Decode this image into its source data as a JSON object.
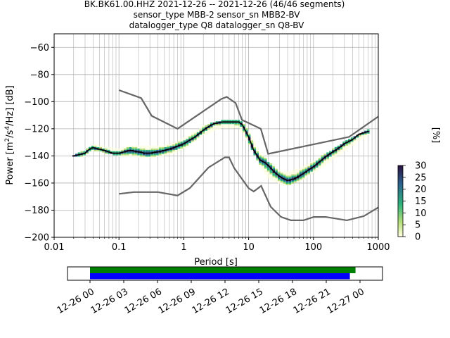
{
  "title": {
    "line1": "BK.BK61.00.HHZ   2021-12-26 -- 2021-12-26  (46/46 segments)",
    "line2": "sensor_type MBB-2 sensor_sn MBB2-BV",
    "line3": "datalogger_type Q8 datalogger_sn Q8-BV"
  },
  "chart_data": [
    {
      "type": "heatmap",
      "xlabel": "Period [s]",
      "ylabel_parts": [
        "Power [m",
        "2",
        "/s",
        "4",
        "/Hz] [dB]"
      ],
      "xscale": "log",
      "xlim": [
        0.01,
        1000
      ],
      "ylim": [
        -200,
        -50
      ],
      "x_ticks": [
        0.01,
        0.1,
        1,
        10,
        100,
        1000
      ],
      "x_tick_labels": [
        "0.01",
        "0.1",
        "1",
        "10",
        "100",
        "1000"
      ],
      "y_ticks": [
        -200,
        -180,
        -160,
        -140,
        -120,
        -100,
        -80,
        -60
      ],
      "y_tick_labels": [
        "−200",
        "−180",
        "−160",
        "−140",
        "−120",
        "−100",
        "−80",
        "−60"
      ],
      "grid": true,
      "colormap": {
        "low": "#ffffe0",
        "mid_low": "#b8e07a",
        "mid": "#2fb47c",
        "mid_high": "#2b5f8c",
        "high": "#2a1140"
      },
      "colorbar": {
        "label": "[%]",
        "min": 0,
        "max": 30,
        "ticks": [
          0,
          5,
          10,
          15,
          20,
          25,
          30
        ]
      },
      "mean_curve": {
        "period": [
          0.02,
          0.025,
          0.03,
          0.035,
          0.04,
          0.05,
          0.06,
          0.08,
          0.1,
          0.12,
          0.15,
          0.2,
          0.25,
          0.3,
          0.4,
          0.5,
          0.7,
          1,
          1.5,
          2,
          2.5,
          3,
          4,
          5,
          6,
          7,
          8,
          10,
          12,
          15,
          18,
          20,
          25,
          30,
          35,
          40,
          50,
          60,
          70,
          80,
          100,
          120,
          150,
          200,
          250,
          300,
          400,
          500,
          600,
          700
        ],
        "power_db": [
          -140,
          -139,
          -138,
          -135,
          -134,
          -135,
          -136,
          -138,
          -138,
          -137,
          -136,
          -137,
          -138,
          -138,
          -137,
          -136,
          -134,
          -131,
          -126,
          -121,
          -118,
          -116,
          -115,
          -115,
          -115,
          -115,
          -117,
          -126,
          -136,
          -143,
          -145,
          -147,
          -152,
          -155,
          -157,
          -158,
          -157,
          -155,
          -153,
          -151,
          -148,
          -145,
          -141,
          -137,
          -134,
          -131,
          -128,
          -124,
          -123,
          -122
        ]
      },
      "percentile_low": {
        "period": [
          0.02,
          0.03,
          0.04,
          0.06,
          0.1,
          0.15,
          0.2,
          0.3,
          0.5,
          0.7,
          1,
          2,
          3,
          5,
          7,
          10,
          15,
          20,
          30,
          40,
          60,
          100,
          200,
          400,
          700
        ],
        "power_db": [
          -140,
          -139,
          -135,
          -137,
          -139,
          -140,
          -140,
          -141,
          -139,
          -137,
          -134,
          -124,
          -120,
          -118,
          -119,
          -130,
          -146,
          -155,
          -160,
          -161,
          -158,
          -152,
          -142,
          -131,
          -124
        ]
      },
      "percentile_high": {
        "period": [
          0.02,
          0.03,
          0.04,
          0.06,
          0.1,
          0.15,
          0.2,
          0.3,
          0.5,
          0.7,
          1,
          2,
          3,
          5,
          7,
          10,
          15,
          20,
          30,
          40,
          60,
          100,
          200,
          400,
          700
        ],
        "power_db": [
          -140,
          -137,
          -132,
          -134,
          -136,
          -133,
          -133,
          -134,
          -133,
          -131,
          -128,
          -119,
          -116,
          -114,
          -114,
          -121,
          -138,
          -145,
          -152,
          -153,
          -150,
          -145,
          -136,
          -127,
          -121
        ]
      },
      "nhnm": {
        "period": [
          0.1,
          0.22,
          0.32,
          0.8,
          3.8,
          4.6,
          6.3,
          7.9,
          15.4,
          20,
          354.8,
          1000
        ],
        "power_db": [
          -91.5,
          -97.4,
          -110.5,
          -120,
          -98,
          -96.5,
          -101,
          -113.5,
          -120,
          -138.5,
          -126,
          -111
        ]
      },
      "nlnm": {
        "period": [
          0.1,
          0.17,
          0.4,
          0.8,
          1.24,
          2.4,
          4.3,
          5,
          6,
          10,
          12,
          15.6,
          21.9,
          31.6,
          45,
          70,
          101,
          154,
          328,
          600,
          1000
        ],
        "power_db": [
          -168,
          -166.7,
          -166.7,
          -169.2,
          -163.7,
          -148.6,
          -141.1,
          -141.1,
          -149,
          -163.8,
          -166.2,
          -162.1,
          -177.5,
          -185,
          -187.5,
          -187.5,
          -185,
          -185,
          -187.5,
          -184.4,
          -178
        ]
      }
    },
    {
      "type": "timeline",
      "x_tick_labels": [
        "12-26 00",
        "12-26 03",
        "12-26 06",
        "12-26 09",
        "12-26 12",
        "12-26 15",
        "12-26 18",
        "12-26 21",
        "12-27 00"
      ],
      "xlim_hours": [
        -2,
        26
      ],
      "series": [
        {
          "start_hours": 0,
          "end_hours": 23.6,
          "color": "#008000"
        },
        {
          "start_hours": 0,
          "end_hours": 23.1,
          "color": "#0000ff"
        }
      ]
    }
  ]
}
